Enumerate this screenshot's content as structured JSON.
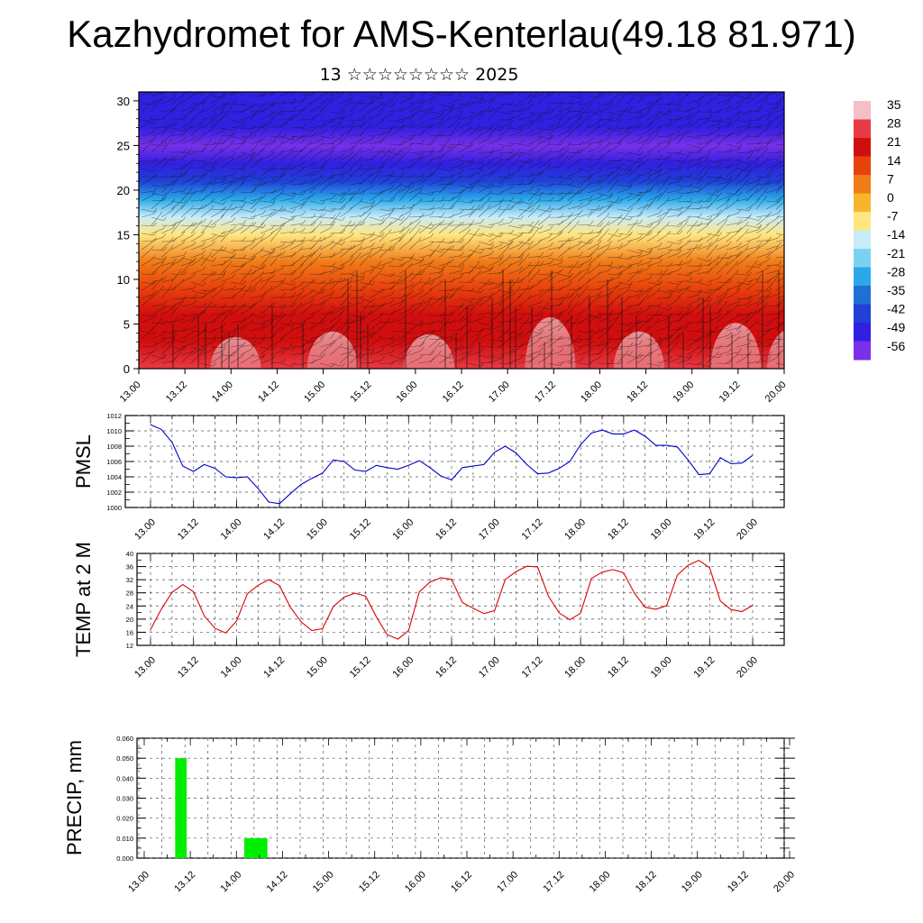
{
  "header": {
    "title": "Kazhydromet for AMS-Kenterlau(49.18 81.971)",
    "subtitle": "13 ☆☆☆☆☆☆☆☆ 2025"
  },
  "colors": {
    "pmsl_line": "#0000cc",
    "temp_line": "#dd0000",
    "precip_bar": "#00ee00",
    "frame": "#000000"
  },
  "chart_data": [
    {
      "id": "cross-section",
      "type": "heatmap",
      "title": "",
      "xlabel": "",
      "ylabel": "",
      "xticks": [
        "13.00",
        "13.12",
        "14.00",
        "14.12",
        "15.00",
        "15.12",
        "16.00",
        "16.12",
        "17.00",
        "17.12",
        "18.00",
        "18.12",
        "19.00",
        "19.12",
        "20.00"
      ],
      "yticks": [
        0,
        5,
        10,
        15,
        20,
        25,
        30
      ],
      "ylim": [
        0,
        31
      ],
      "colorbar_labels": [
        "35",
        "28",
        "21",
        "14",
        "7",
        "0",
        "-7",
        "-14",
        "-21",
        "-28",
        "-35",
        "-42",
        "-49",
        "-56"
      ],
      "colorbar_colors": [
        "#f2c0c6",
        "#e83a44",
        "#d10e0e",
        "#e8420c",
        "#f07c18",
        "#f7b52c",
        "#ffe680",
        "#c8ecf8",
        "#7ad2f2",
        "#2aa8ea",
        "#1f6fd6",
        "#2040d8",
        "#3020e0",
        "#7a30e8"
      ],
      "level_temperature_profile": {
        "height": [
          0,
          3,
          6,
          9,
          12,
          15,
          17,
          19,
          21,
          23,
          25,
          27,
          29,
          31
        ],
        "temperature": [
          28,
          24,
          19,
          14,
          6,
          -4,
          -16,
          -30,
          -42,
          -50,
          -56,
          -52,
          -50,
          -49
        ]
      },
      "overlay": "wind barbs"
    },
    {
      "id": "pmsl",
      "type": "line",
      "ylabel": "PMSL",
      "ylim": [
        1000,
        1012
      ],
      "yticks": [
        1000,
        1002,
        1004,
        1006,
        1008,
        1010,
        1012
      ],
      "xticks": [
        "13.00",
        "13.12",
        "14.00",
        "14.12",
        "15.00",
        "15.12",
        "16.00",
        "16.12",
        "17.00",
        "17.12",
        "18.00",
        "18.12",
        "19.00",
        "19.12",
        "20.00"
      ],
      "grid": true,
      "x_hours": [
        0,
        3,
        6,
        9,
        12,
        15,
        18,
        21,
        24,
        27,
        30,
        33,
        36,
        39,
        42,
        45,
        48,
        51,
        54,
        57,
        60,
        63,
        66,
        69,
        72,
        75,
        78,
        81,
        84,
        87,
        90,
        93,
        96,
        99,
        102,
        105,
        108,
        111,
        114,
        117,
        120,
        123,
        126,
        129,
        132,
        135,
        138,
        141,
        144,
        147,
        150,
        153,
        156,
        159,
        162,
        165,
        168
      ],
      "values": [
        1010.8,
        1010.2,
        1008.5,
        1005.4,
        1004.7,
        1005.6,
        1005.1,
        1004.0,
        1003.9,
        1004.0,
        1002.5,
        1000.7,
        1000.5,
        1001.8,
        1003.0,
        1003.8,
        1004.5,
        1006.2,
        1006.0,
        1004.9,
        1004.7,
        1005.5,
        1005.2,
        1005.0,
        1005.5,
        1006.1,
        1005.2,
        1004.1,
        1003.6,
        1005.2,
        1005.4,
        1005.6,
        1007.2,
        1008.0,
        1007.1,
        1005.6,
        1004.4,
        1004.5,
        1005.1,
        1006.0,
        1008.2,
        1009.7,
        1010.1,
        1009.6,
        1009.6,
        1010.1,
        1009.3,
        1008.1,
        1008.1,
        1007.9,
        1006.2,
        1004.3,
        1004.4,
        1006.5,
        1005.7,
        1005.8,
        1006.8
      ]
    },
    {
      "id": "temp",
      "type": "line",
      "ylabel": "TEMP at 2 M",
      "ylim": [
        12,
        40
      ],
      "yticks": [
        12,
        16,
        20,
        24,
        28,
        32,
        36,
        40
      ],
      "xticks": [
        "13.00",
        "13.12",
        "14.00",
        "14.12",
        "15.00",
        "15.12",
        "16.00",
        "16.12",
        "17.00",
        "17.12",
        "18.00",
        "18.12",
        "19.00",
        "19.12",
        "20.00"
      ],
      "grid": true,
      "x_hours": [
        0,
        3,
        6,
        9,
        12,
        15,
        18,
        21,
        24,
        27,
        30,
        33,
        36,
        39,
        42,
        45,
        48,
        51,
        54,
        57,
        60,
        63,
        66,
        69,
        72,
        75,
        78,
        81,
        84,
        87,
        90,
        93,
        96,
        99,
        102,
        105,
        108,
        111,
        114,
        117,
        120,
        123,
        126,
        129,
        132,
        135,
        138,
        141,
        144,
        147,
        150,
        153,
        156,
        159,
        162,
        165,
        168
      ],
      "values": [
        16.8,
        23.0,
        28.2,
        30.5,
        28.3,
        21.0,
        17.2,
        15.8,
        19.4,
        27.7,
        30.3,
        32.0,
        30.2,
        23.6,
        19.2,
        16.5,
        17.1,
        23.8,
        26.7,
        27.9,
        27.0,
        20.7,
        15.3,
        13.9,
        16.5,
        28.3,
        31.3,
        32.6,
        32.1,
        25.1,
        23.3,
        21.7,
        22.6,
        32.1,
        34.5,
        36.1,
        35.9,
        27.0,
        21.9,
        19.8,
        21.8,
        32.4,
        34.3,
        35.1,
        34.1,
        27.9,
        23.6,
        23.0,
        24.1,
        33.4,
        36.4,
        37.9,
        35.6,
        25.5,
        22.9,
        22.3,
        24.2
      ]
    },
    {
      "id": "precip",
      "type": "bar",
      "ylabel": "PRECIP, mm",
      "ylim": [
        0,
        0.06
      ],
      "ytick_labels": [
        "0.000",
        "0.010",
        "0.020",
        "0.030",
        "0.040",
        "0.050",
        "0.060"
      ],
      "xticks": [
        "13.00",
        "13.12",
        "14.00",
        "14.12",
        "15.00",
        "15.12",
        "16.00",
        "16.12",
        "17.00",
        "17.12",
        "18.00",
        "18.12",
        "19.00",
        "19.12",
        "20.00"
      ],
      "grid": true,
      "bars": [
        {
          "start_hour": 9,
          "end_hour": 12,
          "value": 0.05
        },
        {
          "start_hour": 27,
          "end_hour": 33,
          "value": 0.01
        }
      ]
    }
  ]
}
